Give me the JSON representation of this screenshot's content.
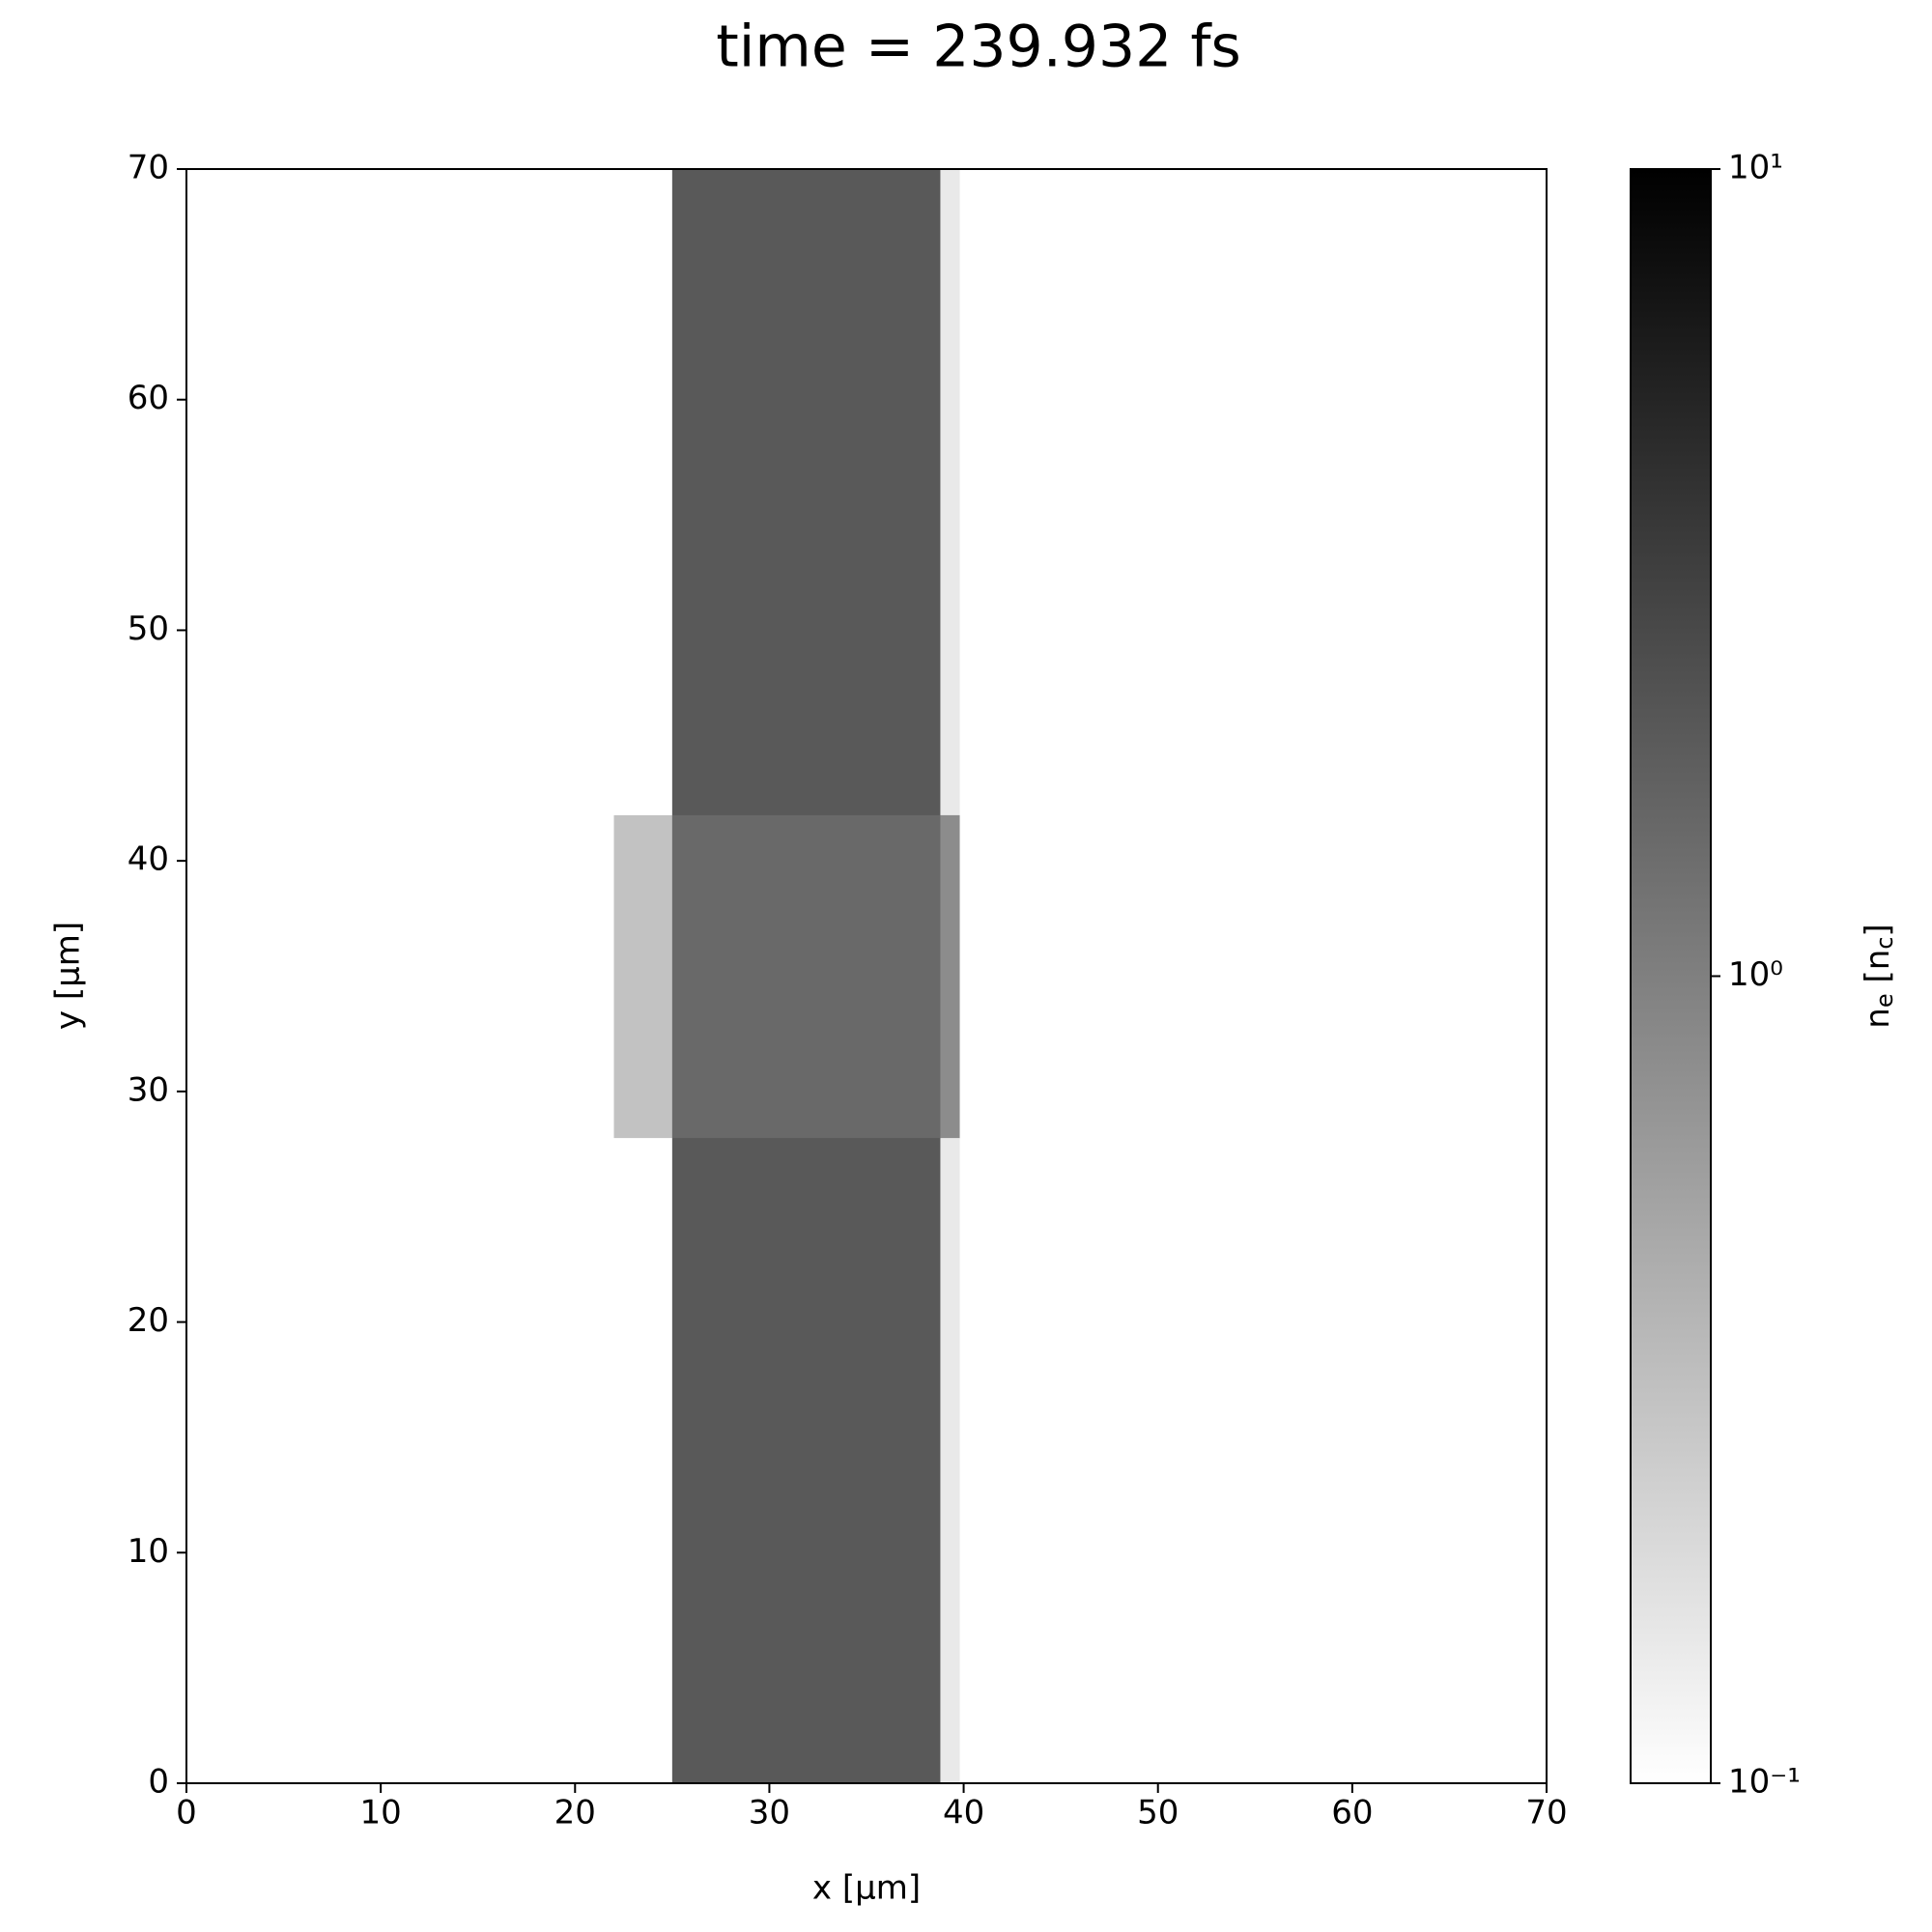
{
  "chart_data": {
    "type": "heatmap",
    "title": "time = 239.932 fs",
    "x_label": "x [μm]",
    "y_label": "y [μm]",
    "x": [
      0,
      22,
      25,
      38.8,
      39.8,
      70
    ],
    "y": [
      0,
      28,
      42,
      70
    ],
    "values": [
      [
        0.1,
        0.1,
        2,
        0.15,
        0.1
      ],
      [
        0.1,
        0.3,
        1.5,
        0.8,
        0.1
      ],
      [
        0.1,
        0.1,
        2,
        0.15,
        0.1
      ]
    ],
    "xlim": [
      0,
      70
    ],
    "ylim": [
      0,
      70
    ],
    "xticks": [
      0,
      10,
      20,
      30,
      40,
      50,
      60,
      70
    ],
    "yticks": [
      0,
      10,
      20,
      30,
      40,
      50,
      60,
      70
    ],
    "colormap": "gray_r",
    "color_scale": "log",
    "clim": [
      0.1,
      10
    ],
    "cticks": [
      {
        "value": 0.1,
        "label": "10⁻¹"
      },
      {
        "value": 1,
        "label": "10⁰"
      },
      {
        "value": 10,
        "label": "10¹"
      }
    ],
    "colorbar_label": [
      "n",
      "e",
      " [n",
      "c",
      "]"
    ]
  }
}
